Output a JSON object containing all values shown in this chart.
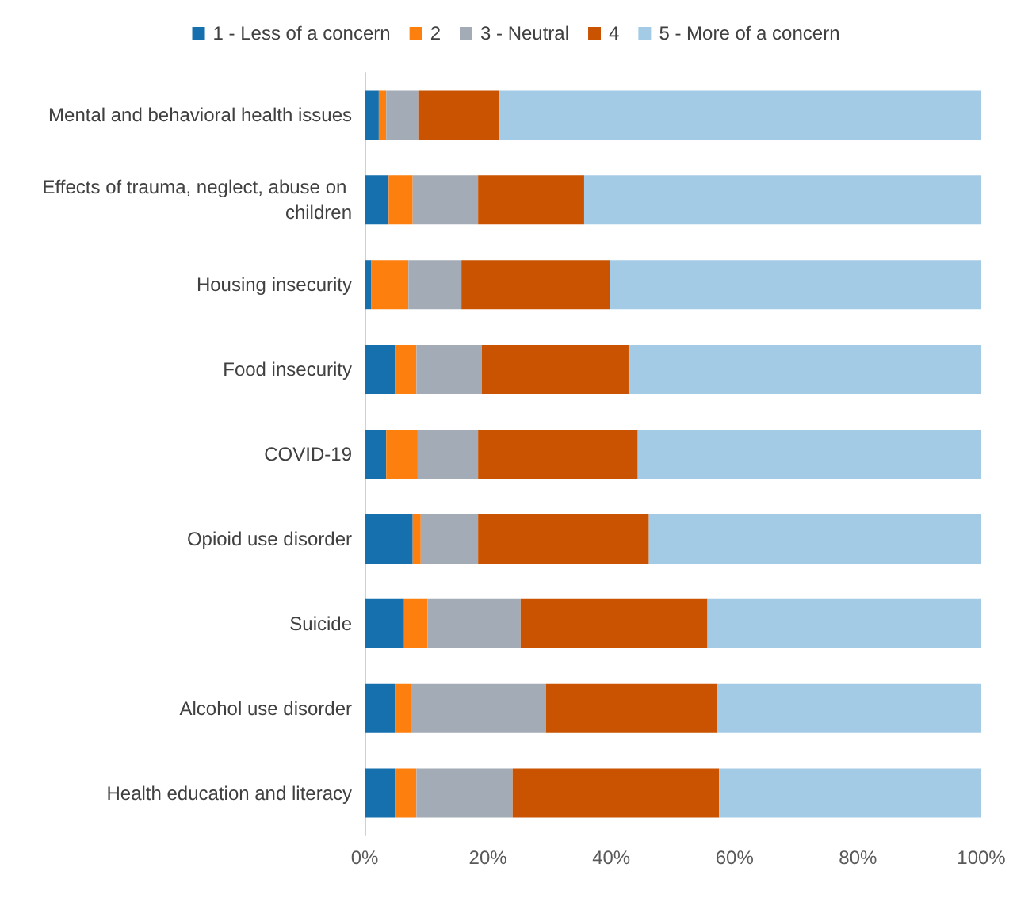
{
  "chart_data": {
    "type": "bar",
    "orientation": "horizontal",
    "stacked": true,
    "categories": [
      "Mental and behavioral health issues",
      "Effects of trauma, neglect, abuse on children",
      "Housing insecurity",
      "Food insecurity",
      "COVID-19",
      "Opioid use disorder",
      "Suicide",
      "Alcohol use disorder",
      "Health education and literacy"
    ],
    "series": [
      {
        "name": "1 - Less of a concern",
        "color": "#1670ad",
        "values": [
          2.3,
          3.9,
          1.1,
          4.9,
          3.5,
          7.8,
          6.4,
          4.9,
          4.9
        ]
      },
      {
        "name": "2",
        "color": "#fd7f0e",
        "values": [
          1.2,
          3.9,
          6.0,
          3.5,
          5.1,
          1.3,
          3.8,
          2.6,
          3.5
        ]
      },
      {
        "name": "3 - Neutral",
        "color": "#a2abb6",
        "values": [
          5.2,
          10.6,
          8.6,
          10.6,
          9.8,
          9.3,
          15.1,
          21.9,
          15.6
        ]
      },
      {
        "name": "4",
        "color": "#c95300",
        "values": [
          13.2,
          17.2,
          24.1,
          23.8,
          25.9,
          27.7,
          30.3,
          27.7,
          33.5
        ]
      },
      {
        "name": "5 - More of a concern",
        "color": "#a4cbe6",
        "values": [
          78.1,
          64.4,
          60.2,
          57.2,
          55.7,
          53.9,
          44.4,
          42.9,
          42.5
        ]
      }
    ],
    "xlim": [
      0,
      100
    ],
    "xticks": [
      {
        "value": 0,
        "label": "0%"
      },
      {
        "value": 20,
        "label": "20%"
      },
      {
        "value": 40,
        "label": "40%"
      },
      {
        "value": 60,
        "label": "60%"
      },
      {
        "value": 80,
        "label": "80%"
      },
      {
        "value": 100,
        "label": "100%"
      }
    ],
    "legend": "top",
    "grid": false
  }
}
